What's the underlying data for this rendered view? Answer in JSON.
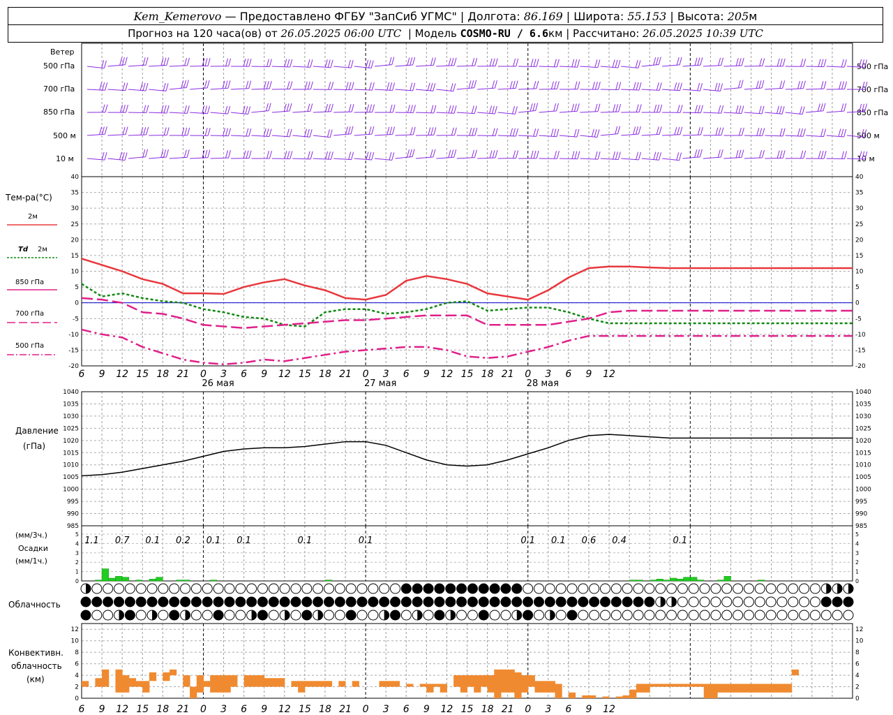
{
  "header": {
    "station": "Kem_Kemerovo",
    "provider": "— Предоставлено ФГБУ \"ЗапСиб УГМС\" |",
    "lon_label": "Долгота:",
    "lon_value": "86.169",
    "lat_label": "| Широта:",
    "lat_value": "55.153",
    "alt_label": "| Высота:",
    "alt_value": "205",
    "alt_unit": "м",
    "forecast_prefix": "Прогноз на 120 часа(ов) от",
    "forecast_from": "26.05.2025 06:00 UTC",
    "model_label": "| Модель",
    "model_name": "COSMO-RU / 6.6",
    "model_unit": "км",
    "computed_label": "| Рассчитано:",
    "computed_at": "26.05.2025 10:39 UTC"
  },
  "labels": {
    "wind": "Ветер",
    "wind_levels": [
      "500 гПа",
      "700 гПа",
      "850 гПа",
      "500 м",
      "10 м"
    ],
    "temp": "Тем-ра(°C)",
    "legend_2m": "2м",
    "legend_td": "Td",
    "legend_td2": "2м",
    "legend_850": "850 гПа",
    "legend_700": "700 гПа",
    "legend_500": "500 гПа",
    "pressure": "Давление",
    "pressure_unit": "(гПа)",
    "precip_unit3": "(мм/3ч.)",
    "precip": "Осадки",
    "precip_unit1": "(мм/1ч.)",
    "cloud": "Облачность",
    "conv1": "Конвективн.",
    "conv2": "облачность",
    "conv3": "(км)"
  },
  "colors": {
    "t2m": "#e8383d",
    "td2m": "#118811",
    "t850": "#e0208a",
    "wind": "#8a2be2",
    "precip": "#22cc22",
    "conv": "#f08a30",
    "zero": "#0000cc"
  },
  "chart_data": [
    {
      "type": "line",
      "name": "temperature",
      "x_hours_from_start": [
        0,
        3,
        6,
        9,
        12,
        15,
        18,
        21,
        24,
        27,
        30,
        33,
        36,
        39,
        42,
        45,
        48,
        51,
        54,
        57,
        60,
        63,
        66,
        69,
        72,
        75,
        78,
        81,
        84,
        87,
        90,
        93,
        96,
        99,
        102,
        105,
        108,
        111,
        114
      ],
      "xtick_labels": [
        "6",
        "9",
        "12",
        "15",
        "18",
        "21",
        "0",
        "3",
        "6",
        "9",
        "12",
        "15",
        "18",
        "21",
        "0",
        "3",
        "6",
        "9",
        "12",
        "15",
        "18",
        "21",
        "0",
        "3",
        "6",
        "9",
        "12"
      ],
      "day_labels": [
        "26 мая",
        "27 мая",
        "28 мая"
      ],
      "ylim": [
        -20,
        40
      ],
      "yticks": [
        -20,
        -15,
        -10,
        -5,
        0,
        5,
        10,
        15,
        20,
        25,
        30,
        35,
        40
      ],
      "series": [
        {
          "name": "2м",
          "values": [
            14,
            12,
            10,
            7.5,
            6,
            3,
            3,
            2.8,
            5,
            6.5,
            7.5,
            5.5,
            4,
            1.5,
            1,
            2.5,
            7,
            8.5,
            7.5,
            6,
            3,
            2,
            1,
            4,
            8,
            11,
            11.5,
            11.5,
            11.2,
            11,
            11,
            11,
            11,
            11,
            11,
            11,
            11,
            11,
            11
          ]
        },
        {
          "name": "Td 2м",
          "values": [
            6,
            2,
            3,
            1.5,
            0.5,
            0,
            -2,
            -3,
            -4.5,
            -5,
            -7,
            -7.5,
            -3,
            -2,
            -2,
            -3.5,
            -3,
            -2,
            0,
            0.5,
            -2.5,
            -2,
            -1.5,
            -1.5,
            -3,
            -5,
            -6.5,
            -6.5,
            -6.5,
            -6.5,
            -6.5,
            -6.5,
            -6.5,
            -6.5,
            -6.5,
            -6.5,
            -6.5,
            -6.5,
            -6.5
          ]
        },
        {
          "name": "850 гПа",
          "values": [
            1.5,
            1,
            0,
            -3,
            -3.5,
            -5,
            -7,
            -7.5,
            -8,
            -7.5,
            -7,
            -6.5,
            -6,
            -5.5,
            -5.5,
            -5,
            -4.5,
            -4,
            -4,
            -4,
            -7,
            -7,
            -7,
            -7,
            -6,
            -5,
            -3,
            -2.5,
            -2.5,
            -2.5,
            -2.5,
            -2.5,
            -2.5,
            -2.5,
            -2.5,
            -2.5,
            -2.5,
            -2.5,
            -2.5
          ]
        },
        {
          "name": "500 гПа",
          "values": [
            -8.5,
            -10,
            -11,
            -14,
            -16,
            -18,
            -19,
            -19.5,
            -19,
            -18,
            -18.5,
            -17.5,
            -16.5,
            -15.5,
            -15,
            -14.5,
            -14,
            -14,
            -15,
            -17,
            -17.5,
            -17,
            -15.5,
            -14,
            -12,
            -10.5,
            -10.5,
            -10.5,
            -10.5,
            -10.5,
            -10.5,
            -10.5,
            -10.5,
            -10.5,
            -10.5,
            -10.5,
            -10.5,
            -10.5,
            -10.5
          ]
        }
      ]
    },
    {
      "type": "line",
      "name": "pressure",
      "ylim": [
        985,
        1040
      ],
      "yticks": [
        985,
        990,
        995,
        1000,
        1005,
        1010,
        1015,
        1020,
        1025,
        1030,
        1035,
        1040
      ],
      "series": [
        {
          "name": "Давление",
          "values": [
            1005.5,
            1006,
            1007,
            1008.5,
            1010,
            1011.5,
            1013.5,
            1015.5,
            1016.5,
            1017,
            1017,
            1017.5,
            1018.5,
            1019.5,
            1019.5,
            1018,
            1015,
            1012,
            1010,
            1009.5,
            1010,
            1012,
            1014.5,
            1017,
            1020,
            1022,
            1022.5,
            1022,
            1021.5,
            1021,
            1021,
            1021,
            1021,
            1021,
            1021,
            1021,
            1021,
            1021,
            1021
          ]
        }
      ]
    },
    {
      "type": "bar",
      "name": "precipitation",
      "ylim": [
        0,
        5
      ],
      "yticks": [
        0,
        1,
        2,
        3,
        4,
        5
      ],
      "totals_3h": [
        "1.1",
        "0.7",
        "0.1",
        "0.2",
        "0.1",
        "0.1",
        "0.1",
        "0.1",
        "0.1",
        "0.1",
        "0.6",
        "0.4",
        "0.1"
      ],
      "hourly_mm": [
        0,
        0,
        0.1,
        1.3,
        0.3,
        0.5,
        0.4,
        0,
        0.1,
        0,
        0.2,
        0.4,
        0,
        0,
        0.1,
        0.1,
        0,
        0,
        0,
        0.1,
        0,
        0,
        0,
        0,
        0,
        0,
        0,
        0,
        0,
        0,
        0,
        0,
        0,
        0,
        0,
        0,
        0.1,
        0,
        0,
        0,
        0,
        0,
        0,
        0,
        0,
        0,
        0,
        0,
        0,
        0,
        0,
        0,
        0,
        0,
        0,
        0,
        0,
        0,
        0,
        0,
        0,
        0,
        0,
        0,
        0,
        0,
        0,
        0,
        0,
        0,
        0,
        0,
        0,
        0,
        0,
        0,
        0,
        0,
        0,
        0,
        0,
        0.1,
        0.1,
        0,
        0.1,
        0.2,
        0.1,
        0.3,
        0.2,
        0.4,
        0.4,
        0.1,
        0,
        0,
        0.1,
        0.5,
        0,
        0,
        0,
        0,
        0.1,
        0,
        0,
        0,
        0,
        0,
        0,
        0,
        0,
        0,
        0,
        0,
        0,
        0,
        0
      ]
    },
    {
      "type": "bar",
      "name": "convective_cloud",
      "ylim": [
        0,
        13
      ],
      "yticks": [
        0,
        2,
        4,
        6,
        8,
        10,
        12
      ],
      "base_top_km": [
        [
          0,
          2,
          3
        ],
        [
          2,
          2,
          3.5
        ],
        [
          3,
          2,
          5
        ],
        [
          5,
          1,
          5
        ],
        [
          6,
          1,
          4
        ],
        [
          7,
          2,
          3.5
        ],
        [
          8,
          2,
          3
        ],
        [
          9,
          1,
          3
        ],
        [
          10,
          3,
          4.5
        ],
        [
          12,
          3,
          4.5
        ],
        [
          13,
          4,
          5
        ],
        [
          14,
          1,
          1
        ],
        [
          15,
          2,
          4
        ],
        [
          16,
          0,
          2
        ],
        [
          17,
          1,
          4
        ],
        [
          18,
          2,
          3
        ],
        [
          19,
          1,
          4
        ],
        [
          20,
          1,
          4
        ],
        [
          21,
          1,
          4
        ],
        [
          22,
          2,
          4
        ],
        [
          24,
          2,
          4
        ],
        [
          25,
          2,
          4
        ],
        [
          26,
          2,
          4
        ],
        [
          27,
          2,
          3.5
        ],
        [
          28,
          2,
          3.5
        ],
        [
          29,
          2,
          3.5
        ],
        [
          31,
          2,
          3
        ],
        [
          32,
          1,
          3
        ],
        [
          33,
          2,
          3
        ],
        [
          34,
          2,
          3
        ],
        [
          35,
          2,
          3
        ],
        [
          36,
          2,
          3
        ],
        [
          38,
          2,
          3
        ],
        [
          40,
          2,
          3
        ],
        [
          44,
          2,
          3
        ],
        [
          45,
          2,
          3
        ],
        [
          46,
          2,
          3
        ],
        [
          48,
          2,
          2.5
        ],
        [
          50,
          2,
          2.5
        ],
        [
          51,
          1,
          2.5
        ],
        [
          52,
          2,
          2.5
        ],
        [
          53,
          1,
          2.5
        ],
        [
          55,
          2,
          4
        ],
        [
          56,
          1,
          4
        ],
        [
          57,
          2,
          4
        ],
        [
          58,
          1,
          4
        ],
        [
          59,
          2,
          4
        ],
        [
          60,
          1,
          4
        ],
        [
          61,
          0,
          5
        ],
        [
          62,
          1,
          5
        ],
        [
          63,
          1,
          5
        ],
        [
          64,
          0,
          4.5
        ],
        [
          65,
          1,
          4
        ],
        [
          66,
          2,
          4
        ],
        [
          67,
          1,
          3
        ],
        [
          68,
          1,
          3
        ],
        [
          69,
          1,
          3
        ],
        [
          70,
          0,
          2.5
        ],
        [
          72,
          0,
          1
        ],
        [
          74,
          0,
          0.5
        ],
        [
          75,
          0,
          0.5
        ],
        [
          77,
          0,
          0.3
        ],
        [
          79,
          0,
          0.3
        ],
        [
          80,
          0,
          0.5
        ],
        [
          81,
          0,
          1.5
        ],
        [
          82,
          1,
          2.5
        ],
        [
          83,
          1,
          2.5
        ],
        [
          84,
          2,
          2.5
        ],
        [
          85,
          2,
          2.5
        ],
        [
          86,
          2,
          2.5
        ],
        [
          87,
          2,
          2.5
        ],
        [
          88,
          2,
          2.5
        ],
        [
          89,
          2,
          2.5
        ],
        [
          90,
          2,
          2.5
        ],
        [
          91,
          2,
          2.5
        ],
        [
          92,
          0,
          2.5
        ],
        [
          93,
          0,
          2.5
        ],
        [
          94,
          1,
          2.5
        ],
        [
          95,
          1,
          2.5
        ],
        [
          96,
          1,
          2.5
        ],
        [
          97,
          1,
          2.5
        ],
        [
          98,
          1,
          2.5
        ],
        [
          99,
          1,
          2.5
        ],
        [
          100,
          1,
          2.5
        ],
        [
          101,
          1,
          2.5
        ],
        [
          102,
          1,
          2.5
        ],
        [
          103,
          1,
          2.5
        ],
        [
          104,
          1,
          2.5
        ],
        [
          105,
          4,
          5
        ]
      ]
    }
  ]
}
